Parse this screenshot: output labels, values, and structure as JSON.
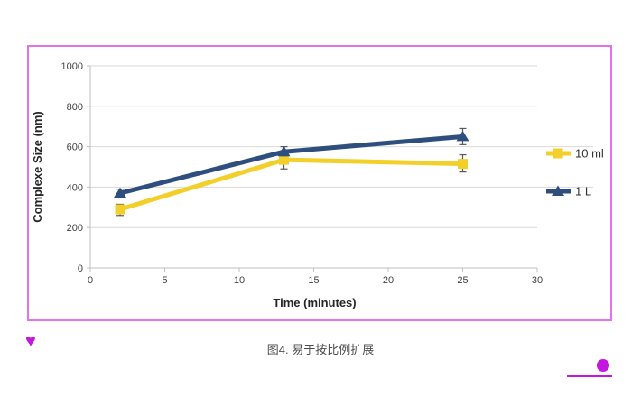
{
  "figure": {
    "caption": "图4. 易于按比例扩展"
  },
  "chart_data": {
    "type": "line",
    "title": "",
    "xlabel": "Time (minutes)",
    "ylabel": "Complexe Size (nm)",
    "xlim": [
      0,
      30
    ],
    "ylim": [
      0,
      1000
    ],
    "xticks": [
      0,
      5,
      10,
      15,
      20,
      25,
      30
    ],
    "yticks": [
      0,
      200,
      400,
      600,
      800,
      1000
    ],
    "grid": "horizontal",
    "legend_position": "right",
    "series": [
      {
        "name": "10 ml",
        "color": "#f3cf2a",
        "marker": "square",
        "x": [
          2,
          13,
          25
        ],
        "y": [
          290,
          535,
          515
        ],
        "error_plus": [
          25,
          20,
          45
        ],
        "error_minus": [
          30,
          45,
          40
        ]
      },
      {
        "name": "1 L",
        "color": "#2e4f7e",
        "marker": "triangle",
        "x": [
          2,
          13,
          25
        ],
        "y": [
          370,
          575,
          650
        ],
        "error_plus": [
          20,
          25,
          40
        ],
        "error_minus": [
          15,
          20,
          40
        ]
      }
    ],
    "gridline_color": "#d9d9d9",
    "axis_line_color": "#bfbfbf",
    "error_bar_color": "#595959"
  },
  "decorations": {
    "heart_glyph": "♥",
    "accent_color": "#c517e0",
    "frame_color": "#e273ea"
  }
}
